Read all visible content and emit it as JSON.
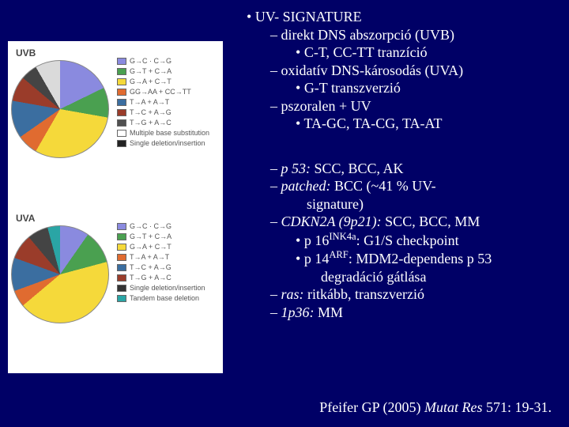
{
  "charts": {
    "uvb": {
      "label": "UVB",
      "type": "pie",
      "colors": [
        "#8a8adf",
        "#4aa050",
        "#f5d93a",
        "#e06b30",
        "#3b6ea0",
        "#9a3c2a",
        "#444444",
        "#dadada"
      ],
      "gradient": "conic-gradient(#8a8adf 0deg 64deg, #4aa050 64deg 100deg, #f5d93a 100deg 210deg, #e06b30 210deg 235deg, #3b6ea0 235deg 280deg, #9a3c2a 280deg 310deg, #444444 310deg 330deg, #dadada 330deg 360deg)",
      "legend": [
        {
          "label": "G→C · C→G",
          "color": "#8a8adf"
        },
        {
          "label": "G→T + C→A",
          "color": "#4aa050"
        },
        {
          "label": "G→A + C→T",
          "color": "#f5d93a"
        },
        {
          "label": "GG→AA + CC→TT",
          "color": "#e06b30"
        },
        {
          "label": "T→A + A→T",
          "color": "#3b6ea0"
        },
        {
          "label": "T→C + A→G",
          "color": "#9a3c2a"
        },
        {
          "label": "T→G + A→C",
          "color": "#505050"
        },
        {
          "label": "Multiple base substitution",
          "color": "#ffffff"
        },
        {
          "label": "Single deletion/insertion",
          "color": "#222222"
        }
      ]
    },
    "uva": {
      "label": "UVA",
      "type": "pie",
      "colors": [
        "#8a8adf",
        "#4aa050",
        "#f5d93a",
        "#e06b30",
        "#3b6ea0",
        "#9a3c2a",
        "#444444",
        "#2aa5a5"
      ],
      "gradient": "conic-gradient(#8a8adf 0deg 35deg, #4aa050 35deg 75deg, #f5d93a 75deg 230deg, #e06b30 230deg 250deg, #3b6ea0 250deg 290deg, #9a3c2a 290deg 320deg, #444444 320deg 345deg, #2aa5a5 345deg 360deg)",
      "legend": [
        {
          "label": "G→C · C→G",
          "color": "#8a8adf"
        },
        {
          "label": "G→T + C→A",
          "color": "#4aa050"
        },
        {
          "label": "G→A + C→T",
          "color": "#f5d93a"
        },
        {
          "label": "T→A + A→T",
          "color": "#e06b30"
        },
        {
          "label": "T→C + A→G",
          "color": "#3b6ea0"
        },
        {
          "label": "T→G + A→C",
          "color": "#9a3c2a"
        },
        {
          "label": "Single deletion/insertion",
          "color": "#333333"
        },
        {
          "label": "Tandem base deletion",
          "color": "#2aa5a5"
        }
      ]
    }
  },
  "text": {
    "l1": "UV- SIGNATURE",
    "l2": "direkt DNS abszorpció (UVB)",
    "l3": "C-T, CC-TT tranzíció",
    "l4": "oxidatív DNS-károsodás (UVA)",
    "l5": "G-T transzverzió",
    "l6": "pszoralen + UV",
    "l7": "TA-GC, TA-CG, TA-AT",
    "g1a": "p 53:",
    "g1b": " SCC, BCC, AK",
    "g2a": "patched:",
    "g2b": " BCC (~41 % UV-",
    "g2c": "signature)",
    "g3a": "CDKN2A (9p21):",
    "g3b": " SCC, BCC, MM",
    "g4a": "p 16",
    "g4sup": "INK4a",
    "g4b": ": G1/S checkpoint",
    "g5a": "p 14",
    "g5sup": "ARF",
    "g5b": ": MDM2-dependens p 53",
    "g5c": "degradáció gátlása",
    "g6a": "ras:",
    "g6b": " ritkább, transzverzió",
    "g7a": "1p36:",
    "g7b": " MM"
  },
  "citation": {
    "author": "Pfeifer GP (2005) ",
    "journal": "Mutat Res",
    "rest": " 571: 19-31."
  }
}
